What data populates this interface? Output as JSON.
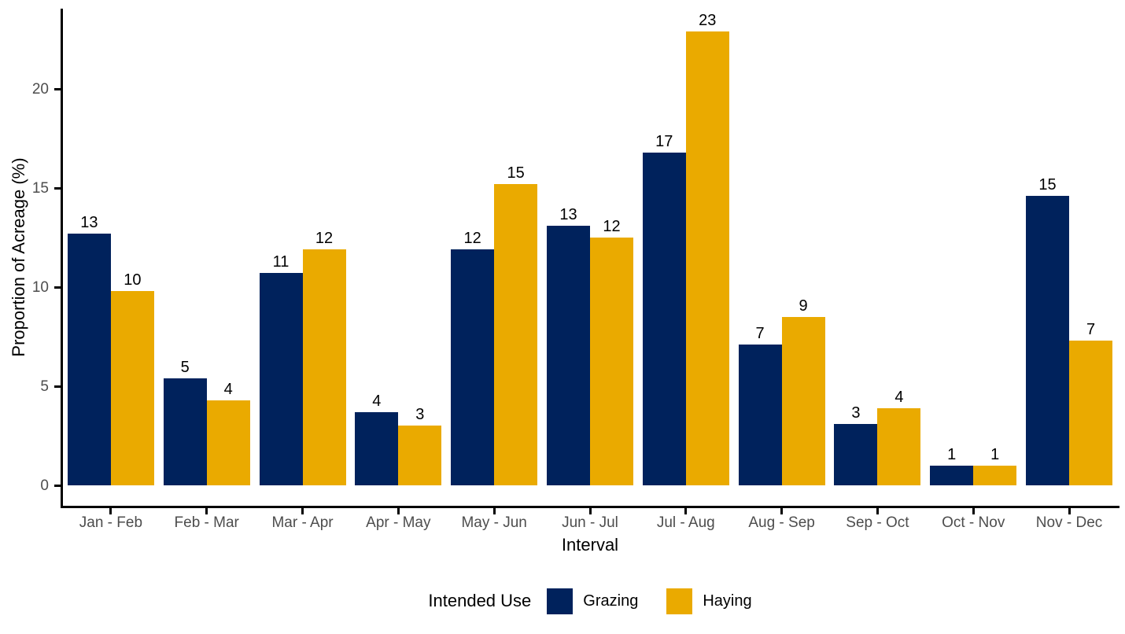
{
  "chart_data": {
    "type": "bar",
    "title": "",
    "xlabel": "Interval",
    "ylabel": "Proportion of Acreage (%)",
    "categories": [
      "Jan - Feb",
      "Feb - Mar",
      "Mar - Apr",
      "Apr - May",
      "May - Jun",
      "Jun - Jul",
      "Jul - Aug",
      "Aug - Sep",
      "Sep - Oct",
      "Oct - Nov",
      "Nov - Dec"
    ],
    "series": [
      {
        "name": "Grazing",
        "color": "#00225C",
        "values": [
          12.7,
          5.4,
          10.7,
          3.7,
          11.9,
          13.1,
          16.8,
          7.1,
          3.1,
          1.0,
          14.6
        ],
        "bar_labels": [
          "13",
          "5",
          "11",
          "4",
          "12",
          "13",
          "17",
          "7",
          "3",
          "1",
          "15"
        ]
      },
      {
        "name": "Haying",
        "color": "#EAAA00",
        "values": [
          9.8,
          4.3,
          11.9,
          3.0,
          15.2,
          12.5,
          22.9,
          8.5,
          3.9,
          1.0,
          7.3
        ],
        "bar_labels": [
          "10",
          "4",
          "12",
          "3",
          "15",
          "12",
          "23",
          "9",
          "4",
          "1",
          "7"
        ]
      }
    ],
    "yticks": [
      0,
      5,
      10,
      15,
      20
    ],
    "ylim": [
      -1.05,
      24.05
    ],
    "grid": false,
    "legend": {
      "title": "Intended Use",
      "position": "bottom"
    },
    "colors": {
      "axis_line": "#000000",
      "tick_label": "#4D4D4D",
      "axis_title": "#000000",
      "bar_label": "#000000",
      "background": "#FFFFFF"
    }
  }
}
